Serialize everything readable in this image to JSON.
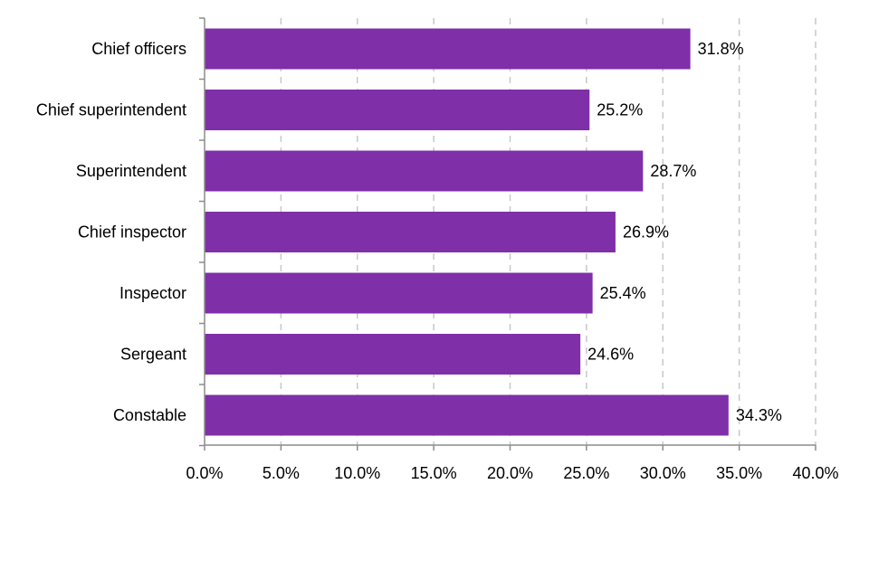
{
  "chart_data": {
    "type": "bar",
    "orientation": "horizontal",
    "title": "",
    "xlabel": "",
    "ylabel": "",
    "categories": [
      "Chief officers",
      "Chief superintendent",
      "Superintendent",
      "Chief inspector",
      "Inspector",
      "Sergeant",
      "Constable"
    ],
    "values": [
      31.8,
      25.2,
      28.7,
      26.9,
      25.4,
      24.6,
      34.3
    ],
    "value_labels": [
      "31.8%",
      "25.2%",
      "28.7%",
      "26.9%",
      "25.4%",
      "24.6%",
      "34.3%"
    ],
    "xlim": [
      0,
      40
    ],
    "xticks": [
      0,
      5,
      10,
      15,
      20,
      25,
      30,
      35,
      40
    ],
    "xtick_labels": [
      "0.0%",
      "5.0%",
      "10.0%",
      "15.0%",
      "20.0%",
      "25.0%",
      "30.0%",
      "35.0%",
      "40.0%"
    ],
    "grid": "vertical dashed",
    "legend": "none",
    "colors": {
      "bar": "#7F2FA8",
      "grid": "#C8C8C8",
      "axis": "#8C8C8C",
      "text": "#000000"
    }
  }
}
